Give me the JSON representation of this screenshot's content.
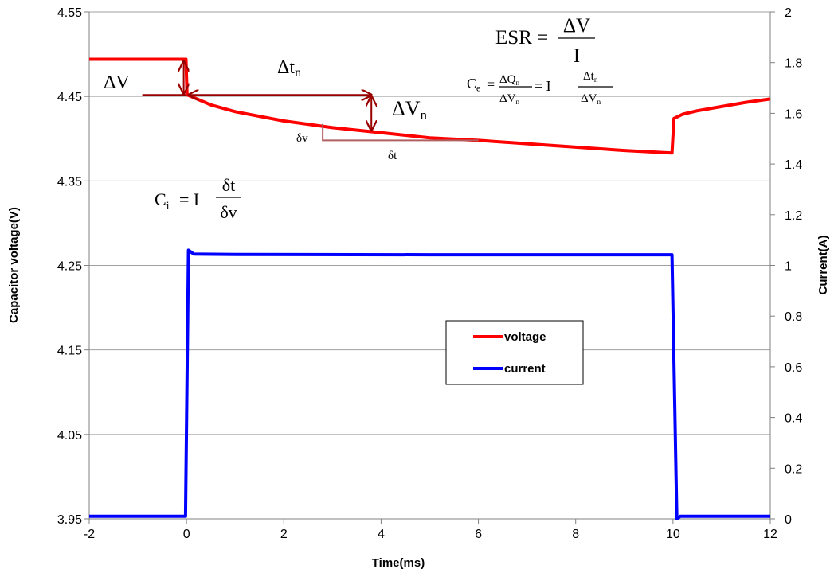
{
  "chart_data": {
    "type": "line",
    "xlabel": "Time(ms)",
    "ylabel_left": "Capacitor voltage(V)",
    "ylabel_right": "Current(A)",
    "xlim": [
      -2,
      12
    ],
    "ylim_left": [
      3.95,
      4.55
    ],
    "ylim_right": [
      0,
      2
    ],
    "x_ticks": [
      "-2",
      "0",
      "2",
      "4",
      "6",
      "8",
      "10",
      "12"
    ],
    "x_tick_values": [
      -2,
      0,
      2,
      4,
      6,
      8,
      10,
      12
    ],
    "yleft_ticks": [
      "3.95",
      "4.05",
      "4.15",
      "4.25",
      "4.35",
      "4.45",
      "4.55"
    ],
    "yleft_tick_values": [
      3.95,
      4.05,
      4.15,
      4.25,
      4.35,
      4.45,
      4.55
    ],
    "yright_ticks": [
      "0",
      "0.2",
      "0.4",
      "0.6",
      "0.8",
      "1",
      "1.2",
      "1.4",
      "1.6",
      "1.8",
      "2"
    ],
    "yright_tick_values": [
      0,
      0.2,
      0.4,
      0.6,
      0.8,
      1.0,
      1.2,
      1.4,
      1.6,
      1.8,
      2.0
    ],
    "grid": "horizontal",
    "legend_position": "center-right",
    "series": [
      {
        "name": "voltage",
        "axis": "left",
        "color": "#ff0000",
        "points": [
          [
            -2,
            4.494
          ],
          [
            -0.01,
            4.494
          ],
          [
            0.01,
            4.452
          ],
          [
            0.5,
            4.44
          ],
          [
            1,
            4.432
          ],
          [
            2,
            4.421
          ],
          [
            3,
            4.413
          ],
          [
            4,
            4.407
          ],
          [
            5,
            4.401
          ],
          [
            6,
            4.398
          ],
          [
            7,
            4.394
          ],
          [
            8,
            4.39
          ],
          [
            9,
            4.386
          ],
          [
            9.98,
            4.383
          ],
          [
            10.02,
            4.424
          ],
          [
            10.2,
            4.429
          ],
          [
            10.5,
            4.433
          ],
          [
            11,
            4.438
          ],
          [
            11.5,
            4.443
          ],
          [
            12,
            4.447
          ]
        ]
      },
      {
        "name": "current",
        "axis": "right",
        "color": "#0000ff",
        "points": [
          [
            -2,
            0.01
          ],
          [
            -0.02,
            0.01
          ],
          [
            0.04,
            1.06
          ],
          [
            0.15,
            1.045
          ],
          [
            1,
            1.043
          ],
          [
            5,
            1.042
          ],
          [
            9.98,
            1.042
          ],
          [
            10.08,
            0.0
          ],
          [
            10.15,
            0.01
          ],
          [
            12,
            0.01
          ]
        ]
      }
    ],
    "annotations": {
      "esr": {
        "lhs": "ESR =",
        "num": "ΔV",
        "den": "I"
      },
      "ce": {
        "lhs": "C",
        "lhs_sub": "e",
        "eq": "=",
        "num1": "ΔQ",
        "num1_sub": "n",
        "den1": "ΔV",
        "den1_sub": "n",
        "mid": "= I",
        "num2": "Δt",
        "num2_sub": "n",
        "den2": "ΔV",
        "den2_sub": "n"
      },
      "ci": {
        "lhs": "C",
        "lhs_sub": "i",
        "mid": "= I",
        "num": "δt",
        "den": "δv"
      },
      "delta_v": "ΔV",
      "delta_t": {
        "main": "Δt",
        "sub": "n"
      },
      "delta_vn": {
        "main": "ΔV",
        "sub": "n"
      },
      "small_dv": "δv",
      "small_dt": "δt"
    },
    "marker_times": {
      "dt_n_start": 0,
      "dt_n_end": 3.8,
      "delta_v_ref": -0.5,
      "ci_tangent_start": 2.8,
      "ci_tangent_end": 6.0
    }
  }
}
